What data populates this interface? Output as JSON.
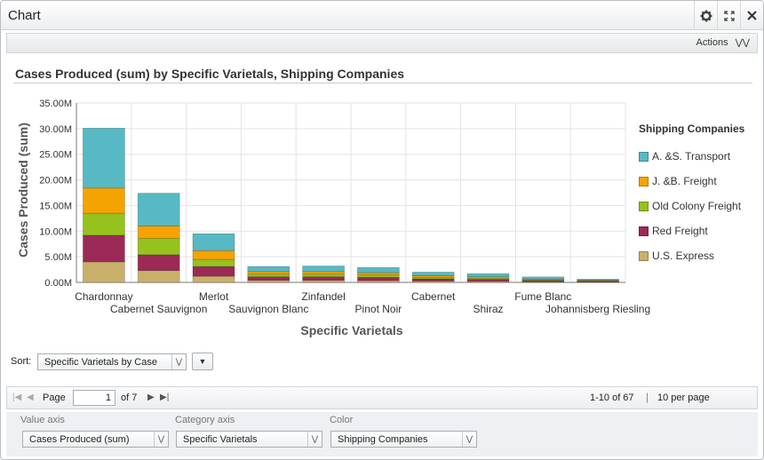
{
  "window": {
    "title": "Chart"
  },
  "titlebar_icons": [
    "gear-icon",
    "expand-icon",
    "close-icon"
  ],
  "actions": {
    "label": "Actions",
    "chevron": "»"
  },
  "sort": {
    "label": "Sort:",
    "value": "Specific Varietals by Case"
  },
  "pager": {
    "page_label": "Page",
    "page_value": "1",
    "of_label": "of 7",
    "range_label": "1-10 of 67",
    "per_page_label": "10 per page"
  },
  "config": {
    "value_axis": {
      "label": "Value axis",
      "value": "Cases Produced (sum)"
    },
    "category_axis": {
      "label": "Category axis",
      "value": "Specific Varietals"
    },
    "color": {
      "label": "Color",
      "value": "Shipping Companies"
    }
  },
  "colors": {
    "A. &S. Transport": "#56b9c3",
    "J. &B. Freight": "#f5a300",
    "Old Colony Freight": "#95c21d",
    "Red Freight": "#9b2a56",
    "U.S. Express": "#c8b06a"
  },
  "chart_data": {
    "type": "bar",
    "stacked": true,
    "title": "Cases Produced (sum) by Specific Varietals, Shipping Companies",
    "xlabel": "Specific Varietals",
    "ylabel": "Cases Produced (sum)",
    "ylim": [
      0,
      35000000
    ],
    "yticks": [
      "0.00M",
      "5.00M",
      "10.00M",
      "15.00M",
      "20.00M",
      "25.00M",
      "30.00M",
      "35.00M"
    ],
    "legend_title": "Shipping Companies",
    "legend_position": "right",
    "grid": true,
    "categories": [
      "Chardonnay",
      "Cabernet Sauvignon",
      "Merlot",
      "Sauvignon Blanc",
      "Zinfandel",
      "Pinot Noir",
      "Cabernet",
      "Shiraz",
      "Fume Blanc",
      "Johannisberg Riesling"
    ],
    "series": [
      {
        "name": "U.S. Express",
        "values": [
          4000000,
          2300000,
          1200000,
          400000,
          400000,
          350000,
          250000,
          200000,
          120000,
          80000
        ]
      },
      {
        "name": "Red Freight",
        "values": [
          5200000,
          3100000,
          1900000,
          700000,
          700000,
          650000,
          450000,
          400000,
          250000,
          150000
        ]
      },
      {
        "name": "Old Colony Freight",
        "values": [
          4300000,
          3200000,
          1400000,
          500000,
          500000,
          450000,
          300000,
          250000,
          150000,
          100000
        ]
      },
      {
        "name": "J. &B. Freight",
        "values": [
          4900000,
          2400000,
          1700000,
          500000,
          500000,
          450000,
          300000,
          250000,
          150000,
          100000
        ]
      },
      {
        "name": "A. &S. Transport",
        "values": [
          11700000,
          6400000,
          3300000,
          1000000,
          1100000,
          1000000,
          700000,
          600000,
          400000,
          200000
        ]
      }
    ]
  }
}
